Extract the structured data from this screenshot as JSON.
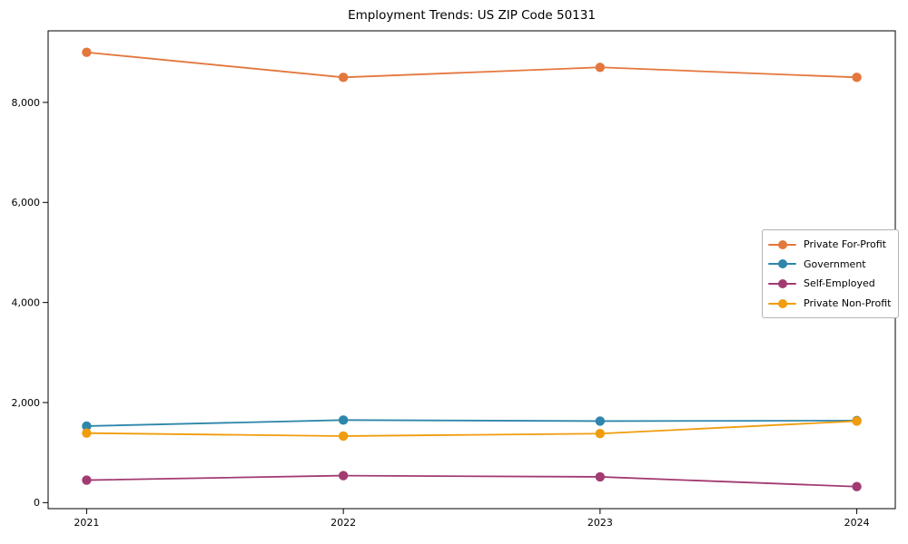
{
  "chart_data": {
    "type": "line",
    "title": "Employment Trends: US ZIP Code 50131",
    "xlabel": "",
    "ylabel": "",
    "x": [
      "2021",
      "2022",
      "2023",
      "2024"
    ],
    "series": [
      {
        "name": "Private For-Profit",
        "color": "#e4773d",
        "values": [
          9000,
          8500,
          8700,
          8500
        ]
      },
      {
        "name": "Government",
        "color": "#2e86ab",
        "values": [
          1530,
          1650,
          1630,
          1640
        ]
      },
      {
        "name": "Self-Employed",
        "color": "#a23b72",
        "values": [
          450,
          540,
          515,
          320
        ]
      },
      {
        "name": "Private Non-Profit",
        "color": "#f09c0d",
        "values": [
          1390,
          1330,
          1380,
          1630
        ]
      }
    ],
    "yticks": {
      "values": [
        0,
        2000,
        4000,
        6000,
        8000
      ],
      "labels": [
        "0",
        "2,000",
        "4,000",
        "6,000",
        "8,000"
      ]
    },
    "ylim": [
      -120,
      9430
    ],
    "grid": false,
    "marker": "circle",
    "legend_position": "center right",
    "axis_color": "#000000"
  }
}
